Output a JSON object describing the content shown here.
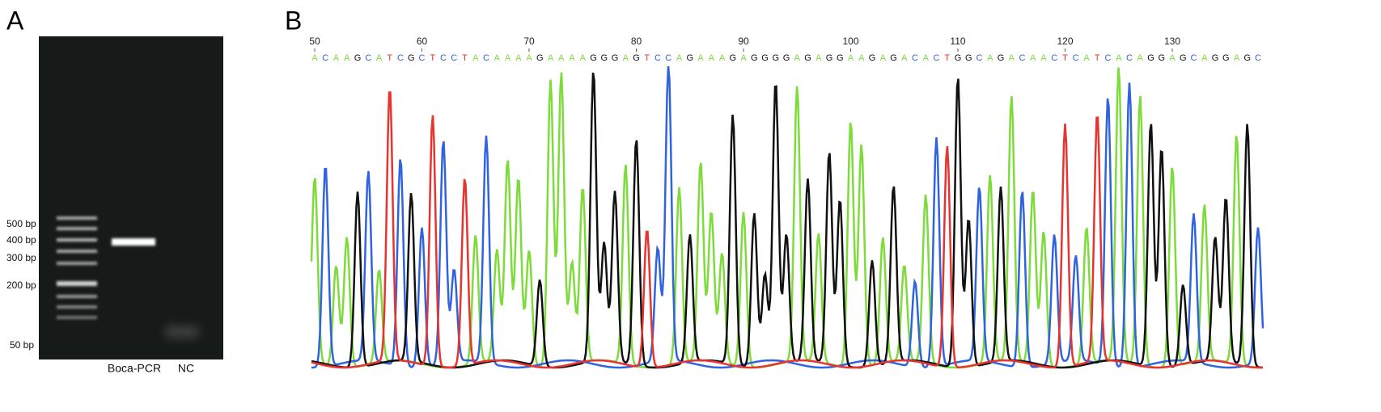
{
  "panel_a": {
    "label": "A",
    "ladder": [
      "500 bp",
      "400 bp",
      "300 bp",
      "200 bp",
      "50 bp"
    ],
    "lanes": [
      "Boca-PCR",
      "NC"
    ]
  },
  "panel_b": {
    "label": "B",
    "positions": [
      50,
      60,
      70,
      80,
      90,
      100,
      110,
      120,
      130
    ],
    "sequence": "ACAAGCATCGCTCCTACAAAAGAAAAGGGAGTCCAGAAAGAGGGGAGAGGAAGAGACACTGGCAGACAACTCATCACAGGAGCAGGAGC"
  }
}
